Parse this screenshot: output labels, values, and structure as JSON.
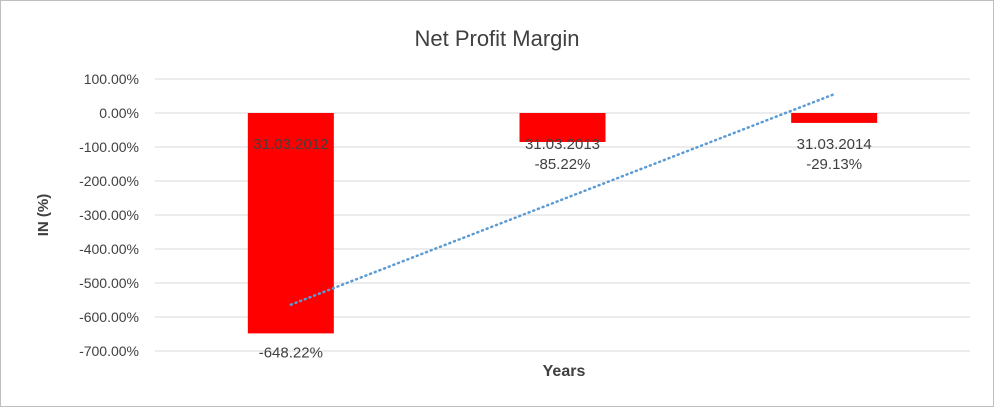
{
  "chart_data": {
    "type": "bar",
    "title": "Net Profit Margin",
    "xlabel": "Years",
    "ylabel": "IN (%)",
    "categories": [
      "31.03.2012",
      "31.03.2013",
      "31.03.2014"
    ],
    "values": [
      -648.22,
      -85.22,
      -29.13
    ],
    "data_labels": [
      "-648.22%",
      "-85.22%",
      "-29.13%"
    ],
    "ylim": [
      -700,
      100
    ],
    "yticks": [
      100,
      0,
      -100,
      -200,
      -300,
      -400,
      -500,
      -600,
      -700
    ],
    "ytick_labels": [
      "100.00%",
      "0.00%",
      "-100.00%",
      "-200.00%",
      "-300.00%",
      "-400.00%",
      "-500.00%",
      "-600.00%",
      "-700.00%"
    ],
    "grid": true,
    "trendline": "linear",
    "colors": {
      "bar": "#FF0000",
      "trendline": "#5B9BD5",
      "grid": "#D9D9D9",
      "border": "#BFBFBF"
    }
  }
}
